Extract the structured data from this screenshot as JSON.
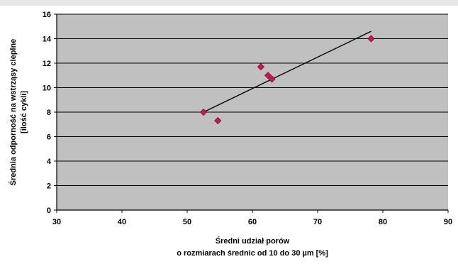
{
  "chart_data": {
    "type": "scatter",
    "title": "",
    "xlabel": [
      "Średni udział porów",
      "o rozmiarach średnic od 10 do 30 µm [%]"
    ],
    "ylabel": [
      "Średnia odporność na wstrząsy cieplne",
      "[ilość cykli]"
    ],
    "xlim": [
      30,
      90
    ],
    "ylim": [
      0,
      16
    ],
    "xticks": [
      30,
      40,
      50,
      60,
      70,
      80,
      90
    ],
    "yticks": [
      0,
      2,
      4,
      6,
      8,
      10,
      12,
      14,
      16
    ],
    "grid": "horizontal",
    "legend": "none",
    "points": [
      {
        "x": 52.5,
        "y": 8.0
      },
      {
        "x": 54.7,
        "y": 7.3
      },
      {
        "x": 61.3,
        "y": 11.7
      },
      {
        "x": 62.4,
        "y": 11.0
      },
      {
        "x": 63.0,
        "y": 10.7
      },
      {
        "x": 78.2,
        "y": 14.0
      }
    ],
    "trendline": {
      "x": [
        52.5,
        78.2
      ],
      "y": [
        8.0,
        14.6
      ]
    },
    "colors": {
      "plot_background": "#c0c0c0",
      "marker": "#d4145a",
      "marker_edge": "#6b0f2e",
      "trendline": "#000000",
      "grid": "#000000",
      "top_band": "#e6e6e6"
    }
  }
}
